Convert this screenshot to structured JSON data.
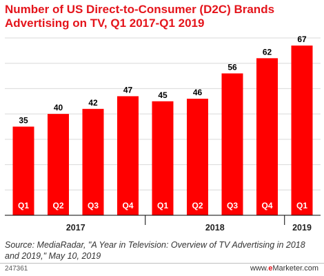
{
  "title": "Number of US Direct-to-Consumer (D2C) Brands Advertising on TV, Q1 2017-Q1 2019",
  "source": "Source: MediaRadar, \"A Year in Television: Overview of TV Advertising in 2018 and 2019,\" May 10, 2019",
  "chart_id": "247361",
  "brand": {
    "prefix": "www.",
    "e": "e",
    "name": "Marketer",
    "suffix": ".com"
  },
  "colors": {
    "bar": "#ff0000",
    "title": "#e4141b",
    "grid": "#d9d9d9"
  },
  "chart_data": {
    "type": "bar",
    "title": "Number of US Direct-to-Consumer (D2C) Brands Advertising on TV, Q1 2017-Q1 2019",
    "categories": [
      "Q1",
      "Q2",
      "Q3",
      "Q4",
      "Q1",
      "Q2",
      "Q3",
      "Q4",
      "Q1"
    ],
    "values": [
      35,
      40,
      42,
      47,
      45,
      46,
      56,
      62,
      67
    ],
    "groups": [
      {
        "label": "2017",
        "count": 4
      },
      {
        "label": "2018",
        "count": 4
      },
      {
        "label": "2019",
        "count": 1
      }
    ],
    "ylim": [
      0,
      70
    ],
    "grid": true,
    "legend": "none",
    "xlabel": "",
    "ylabel": ""
  }
}
